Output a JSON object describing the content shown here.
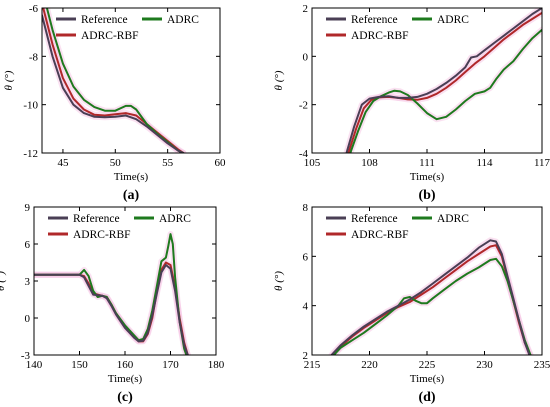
{
  "figure": {
    "series_colors": {
      "Reference": "#4a3f55",
      "ADRC": "#1e7a1e",
      "ADRC-RBF": "#b0282a"
    },
    "highlight_color": "#f5c8e6"
  },
  "chart_data": [
    {
      "panel_label": "(a)",
      "type": "line",
      "xlabel": "Time(s)",
      "ylabel": "θ (°)",
      "xlim": [
        43,
        60
      ],
      "ylim": [
        -12,
        -6
      ],
      "xticks": [
        45,
        50,
        55,
        60
      ],
      "yticks": [
        -12,
        -10,
        -8,
        -6
      ],
      "legend": {
        "placement": "top",
        "entries": [
          "Reference",
          "ADRC",
          "ADRC-RBF"
        ]
      },
      "series": [
        {
          "name": "Reference",
          "x": [
            43,
            44,
            45,
            46,
            47,
            48,
            49,
            50,
            51,
            52,
            53,
            54,
            55,
            56,
            56.5
          ],
          "y": [
            -6.3,
            -8.0,
            -9.3,
            -10.0,
            -10.35,
            -10.5,
            -10.52,
            -10.5,
            -10.45,
            -10.6,
            -10.9,
            -11.25,
            -11.6,
            -11.9,
            -12.0
          ]
        },
        {
          "name": "ADRC",
          "x": [
            43,
            44,
            45,
            46,
            47,
            48,
            49,
            50,
            51,
            51.5,
            52,
            53,
            54,
            55,
            56,
            56.5
          ],
          "y": [
            -5.2,
            -6.9,
            -8.3,
            -9.25,
            -9.8,
            -10.1,
            -10.25,
            -10.25,
            -10.05,
            -10.05,
            -10.2,
            -10.8,
            -11.2,
            -11.55,
            -11.9,
            -12.0
          ]
        },
        {
          "name": "ADRC-RBF",
          "x": [
            43,
            44,
            45,
            46,
            47,
            48,
            49,
            50,
            51,
            52,
            53,
            54,
            55,
            56,
            56.5
          ],
          "y": [
            -5.8,
            -7.5,
            -8.9,
            -9.75,
            -10.2,
            -10.42,
            -10.45,
            -10.4,
            -10.35,
            -10.45,
            -10.8,
            -11.15,
            -11.5,
            -11.85,
            -12.0
          ]
        }
      ]
    },
    {
      "panel_label": "(b)",
      "type": "line",
      "xlabel": "Time(s)",
      "ylabel": "θ (°)",
      "xlim": [
        105,
        117
      ],
      "ylim": [
        -4,
        2
      ],
      "xticks": [
        105,
        108,
        111,
        114,
        117
      ],
      "yticks": [
        -4,
        -2,
        0,
        2
      ],
      "legend": {
        "placement": "top",
        "entries": [
          "Reference",
          "ADRC",
          "ADRC-RBF"
        ]
      },
      "series": [
        {
          "name": "Reference",
          "x": [
            106.8,
            107.2,
            107.6,
            108.0,
            108.5,
            109.0,
            109.5,
            110.0,
            110.5,
            111.0,
            111.5,
            112.0,
            112.5,
            113.0,
            113.3,
            113.6,
            114.0,
            114.5,
            115.0,
            115.5,
            116.0,
            116.5,
            117.0
          ],
          "y": [
            -4.0,
            -2.9,
            -2.0,
            -1.75,
            -1.68,
            -1.65,
            -1.72,
            -1.72,
            -1.68,
            -1.55,
            -1.35,
            -1.1,
            -0.8,
            -0.45,
            -0.05,
            0.0,
            0.25,
            0.55,
            0.85,
            1.15,
            1.45,
            1.75,
            2.0
          ]
        },
        {
          "name": "ADRC",
          "x": [
            107.0,
            107.4,
            107.8,
            108.2,
            108.6,
            109.0,
            109.3,
            109.6,
            110.0,
            110.5,
            111.0,
            111.5,
            112.0,
            112.5,
            113.0,
            113.5,
            114.0,
            114.3,
            114.6,
            115.0,
            115.5,
            116.0,
            116.5,
            117.0
          ],
          "y": [
            -4.0,
            -3.1,
            -2.3,
            -1.85,
            -1.65,
            -1.5,
            -1.42,
            -1.45,
            -1.6,
            -1.95,
            -2.35,
            -2.6,
            -2.5,
            -2.2,
            -1.85,
            -1.55,
            -1.45,
            -1.3,
            -0.95,
            -0.55,
            -0.2,
            0.3,
            0.75,
            1.1
          ]
        },
        {
          "name": "ADRC-RBF",
          "x": [
            106.9,
            107.3,
            107.7,
            108.1,
            108.5,
            109.0,
            109.5,
            110.0,
            110.5,
            111.0,
            111.5,
            112.0,
            112.5,
            113.0,
            113.5,
            114.0,
            114.5,
            115.0,
            115.5,
            116.0,
            116.5,
            117.0
          ],
          "y": [
            -4.0,
            -3.0,
            -2.15,
            -1.8,
            -1.7,
            -1.68,
            -1.72,
            -1.78,
            -1.8,
            -1.72,
            -1.55,
            -1.3,
            -1.0,
            -0.65,
            -0.3,
            0.0,
            0.35,
            0.7,
            1.0,
            1.3,
            1.55,
            1.8
          ]
        }
      ]
    },
    {
      "panel_label": "(c)",
      "type": "line",
      "xlabel": "Time(s)",
      "ylabel": "θ (°)",
      "xlim": [
        140,
        180
      ],
      "ylim": [
        -3,
        9
      ],
      "xticks": [
        140,
        150,
        160,
        170,
        180
      ],
      "yticks": [
        -3,
        0,
        3,
        6,
        9
      ],
      "legend": {
        "placement": "top",
        "entries": [
          "Reference",
          "ADRC",
          "ADRC-RBF"
        ]
      },
      "series": [
        {
          "name": "Reference",
          "x": [
            140,
            146,
            150,
            151,
            152,
            153,
            155,
            156,
            157,
            158,
            160,
            162,
            163,
            164,
            165,
            166,
            167,
            168,
            169,
            170,
            171,
            172,
            173,
            173.8
          ],
          "y": [
            3.5,
            3.5,
            3.5,
            3.3,
            2.6,
            1.9,
            1.8,
            1.6,
            1.0,
            0.3,
            -0.8,
            -1.6,
            -1.9,
            -1.85,
            -1.2,
            0.2,
            2.0,
            3.7,
            4.3,
            4.0,
            2.2,
            -0.3,
            -2.2,
            -3.0
          ]
        },
        {
          "name": "ADRC",
          "x": [
            140,
            146,
            150,
            151,
            152,
            153,
            154,
            155,
            156,
            157,
            158,
            160,
            162,
            163,
            164,
            165,
            166,
            167,
            168,
            169,
            169.5,
            170,
            170.5,
            171,
            172,
            173,
            173.5
          ],
          "y": [
            3.5,
            3.5,
            3.5,
            3.9,
            3.4,
            2.2,
            1.7,
            1.8,
            1.7,
            1.1,
            0.4,
            -0.6,
            -1.4,
            -1.8,
            -1.7,
            -0.9,
            0.6,
            2.6,
            4.6,
            4.9,
            5.8,
            6.8,
            6.0,
            3.3,
            -0.3,
            -2.5,
            -3.0
          ]
        },
        {
          "name": "ADRC-RBF",
          "x": [
            140,
            146,
            150,
            151,
            152,
            153,
            155,
            156,
            157,
            158,
            160,
            162,
            163,
            164,
            165,
            166,
            167,
            168,
            169,
            170,
            171,
            172,
            173,
            173.8
          ],
          "y": [
            3.5,
            3.5,
            3.5,
            3.4,
            2.8,
            2.0,
            1.8,
            1.7,
            1.1,
            0.4,
            -0.7,
            -1.5,
            -1.9,
            -1.9,
            -1.3,
            0.0,
            2.2,
            3.9,
            4.5,
            4.3,
            2.5,
            0.0,
            -2.0,
            -3.0
          ]
        }
      ]
    },
    {
      "panel_label": "(d)",
      "type": "line",
      "xlabel": "Time(s)",
      "ylabel": "θ (°)",
      "xlim": [
        215,
        235
      ],
      "ylim": [
        2,
        8
      ],
      "xticks": [
        215,
        220,
        225,
        230,
        235
      ],
      "yticks": [
        2,
        4,
        6,
        8
      ],
      "legend": {
        "placement": "top",
        "entries": [
          "Reference",
          "ADRC",
          "ADRC-RBF"
        ]
      },
      "series": [
        {
          "name": "Reference",
          "x": [
            216.7,
            217.5,
            218.5,
            219.5,
            220.5,
            221.5,
            222.5,
            223.5,
            224.5,
            225.5,
            226.5,
            227.5,
            228.5,
            229.5,
            230.5,
            231.0,
            231.5,
            232.0,
            232.5,
            233.0,
            233.5,
            233.9
          ],
          "y": [
            2.0,
            2.4,
            2.8,
            3.15,
            3.45,
            3.75,
            4.0,
            4.25,
            4.55,
            4.9,
            5.25,
            5.6,
            5.95,
            6.35,
            6.65,
            6.6,
            6.1,
            5.2,
            4.3,
            3.4,
            2.5,
            2.0
          ]
        },
        {
          "name": "ADRC",
          "x": [
            216.9,
            217.5,
            218.5,
            219.5,
            220.5,
            221.5,
            222.5,
            223.0,
            223.5,
            224.0,
            224.5,
            225.0,
            225.5,
            226.5,
            227.5,
            228.5,
            229.5,
            230.5,
            231.0,
            231.5,
            232.0,
            232.5,
            233.0,
            233.5,
            234.0
          ],
          "y": [
            2.0,
            2.3,
            2.6,
            2.9,
            3.25,
            3.6,
            4.0,
            4.3,
            4.35,
            4.2,
            4.1,
            4.1,
            4.3,
            4.65,
            5.0,
            5.3,
            5.55,
            5.85,
            5.9,
            5.6,
            5.0,
            4.2,
            3.4,
            2.6,
            2.0
          ]
        },
        {
          "name": "ADRC-RBF",
          "x": [
            216.8,
            217.5,
            218.5,
            219.5,
            220.5,
            221.5,
            222.5,
            223.5,
            224.5,
            225.5,
            226.5,
            227.5,
            228.5,
            229.5,
            230.5,
            231.0,
            231.5,
            232.0,
            232.5,
            233.0,
            233.5,
            234.0
          ],
          "y": [
            2.0,
            2.35,
            2.75,
            3.1,
            3.4,
            3.7,
            3.95,
            4.15,
            4.45,
            4.75,
            5.1,
            5.45,
            5.8,
            6.1,
            6.4,
            6.45,
            6.0,
            5.1,
            4.2,
            3.3,
            2.5,
            2.0
          ]
        }
      ]
    }
  ]
}
